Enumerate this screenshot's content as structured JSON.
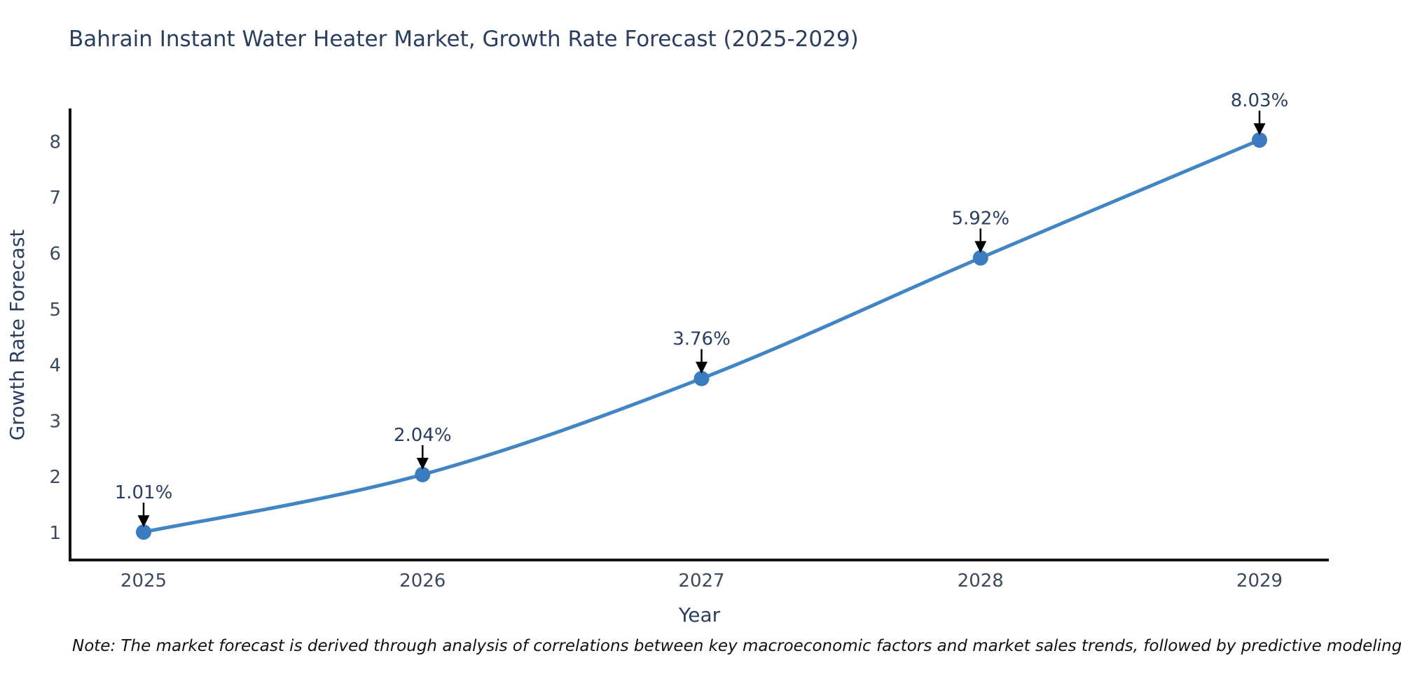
{
  "title": "Bahrain Instant Water Heater Market, Growth Rate Forecast (2025-2029)",
  "note": "Note: The market forecast is derived through analysis of correlations between key macroeconomic factors and market sales trends, followed by predictive modeling to project future sales.",
  "chart_data": {
    "type": "line",
    "title": "Bahrain Instant Water Heater Market, Growth Rate Forecast (2025-2029)",
    "x": [
      2025,
      2026,
      2027,
      2028,
      2029
    ],
    "y": [
      1.01,
      2.04,
      3.76,
      5.92,
      8.03
    ],
    "point_labels": [
      "1.01%",
      "2.04%",
      "3.76%",
      "5.92%",
      "8.03%"
    ],
    "xlabel": "Year",
    "ylabel": "Growth Rate Forecast",
    "xticks": [
      "2025",
      "2026",
      "2027",
      "2028",
      "2029"
    ],
    "yticks": [
      1,
      2,
      3,
      4,
      5,
      6,
      7,
      8
    ],
    "ylim": [
      0.51,
      8.57
    ],
    "line_shape": "spline",
    "grid": false,
    "legend": "none",
    "colors": {
      "line": "#4285c3",
      "marker": "#3a7cbf",
      "axis": "#111111",
      "title_text": "#2a3f5f",
      "tick_text": "#3b4a5e",
      "axis_label_text": "#2a3f5f",
      "annotation_text": "#2a3f5f",
      "arrow": "#000000",
      "background": "#ffffff"
    }
  }
}
